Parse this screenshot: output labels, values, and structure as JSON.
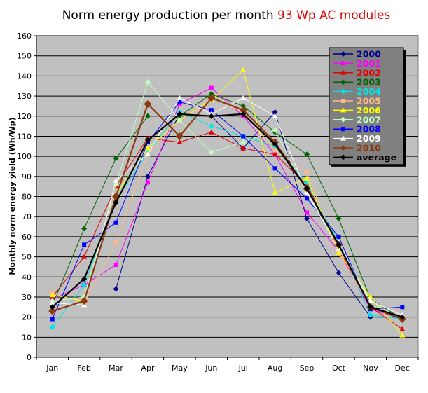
{
  "chart_data": {
    "type": "line",
    "title": "Norm energy production per month",
    "title_accent": "93 Wp AC modules",
    "title_accent_color": "#e00000",
    "xlabel": "",
    "ylabel": "Monthly norm energy yield (Wh/Wp)",
    "ylim": [
      0,
      160
    ],
    "ytick_step": 10,
    "grid": true,
    "legend_position": "top-right",
    "plot_background": "#c0c0c0",
    "categories": [
      "Jan",
      "Feb",
      "Mar",
      "Apr",
      "May",
      "Jun",
      "Jul",
      "Aug",
      "Sep",
      "Oct",
      "Nov",
      "Dec"
    ],
    "series": [
      {
        "name": "2000",
        "color": "#00008b",
        "marker": "diamond",
        "values": [
          null,
          null,
          34,
          90,
          121,
          120,
          104,
          122,
          69,
          42,
          20,
          20
        ]
      },
      {
        "name": "2001",
        "color": "#ff00ff",
        "marker": "square",
        "values": [
          29,
          36,
          46,
          87,
          126,
          134,
          120,
          101,
          72,
          53,
          24,
          19
        ]
      },
      {
        "name": "2002",
        "color": "#e00000",
        "marker": "triangle",
        "values": [
          30,
          50,
          85,
          109,
          107,
          112,
          104,
          101,
          86,
          54,
          25,
          14
        ]
      },
      {
        "name": "2003",
        "color": "#006400",
        "marker": "diamond",
        "values": [
          26,
          64,
          99,
          120,
          120,
          131,
          125,
          112,
          101,
          69,
          29,
          19
        ]
      },
      {
        "name": "2004",
        "color": "#00e5e5",
        "marker": "diamond",
        "values": [
          15,
          36,
          78,
          102,
          122,
          115,
          110,
          105,
          87,
          57,
          21,
          19
        ]
      },
      {
        "name": "2005",
        "color": "#ffb888",
        "marker": "square",
        "values": [
          32,
          27,
          57,
          101,
          118,
          129,
          122,
          103,
          92,
          52,
          25,
          19
        ]
      },
      {
        "name": "2006",
        "color": "#ffff00",
        "marker": "triangle",
        "values": [
          31,
          28,
          81,
          104,
          118,
          128,
          143,
          82,
          89,
          52,
          30,
          11
        ]
      },
      {
        "name": "2007",
        "color": "#c0ffc0",
        "marker": "diamond",
        "values": [
          28,
          30,
          86,
          137,
          118,
          102,
          107,
          113,
          82,
          57,
          28,
          19
        ]
      },
      {
        "name": "2008",
        "color": "#0000ff",
        "marker": "square",
        "values": [
          19,
          56,
          67,
          107,
          127,
          123,
          110,
          94,
          79,
          60,
          24,
          25
        ]
      },
      {
        "name": "2009",
        "color": "#ffffff",
        "marker": "triangle",
        "values": [
          27,
          26,
          88,
          101,
          129,
          121,
          129,
          120,
          82,
          54,
          28,
          21
        ]
      },
      {
        "name": "2010",
        "color": "#8b3a0f",
        "marker": "diamond",
        "values": [
          23,
          28,
          80,
          126,
          110,
          129,
          123,
          107,
          84,
          56,
          25,
          19
        ]
      },
      {
        "name": "average",
        "color": "#000000",
        "marker": "diamond",
        "values": [
          25,
          39,
          77,
          108,
          121,
          120,
          121,
          106,
          84,
          56,
          25,
          20
        ]
      }
    ]
  }
}
